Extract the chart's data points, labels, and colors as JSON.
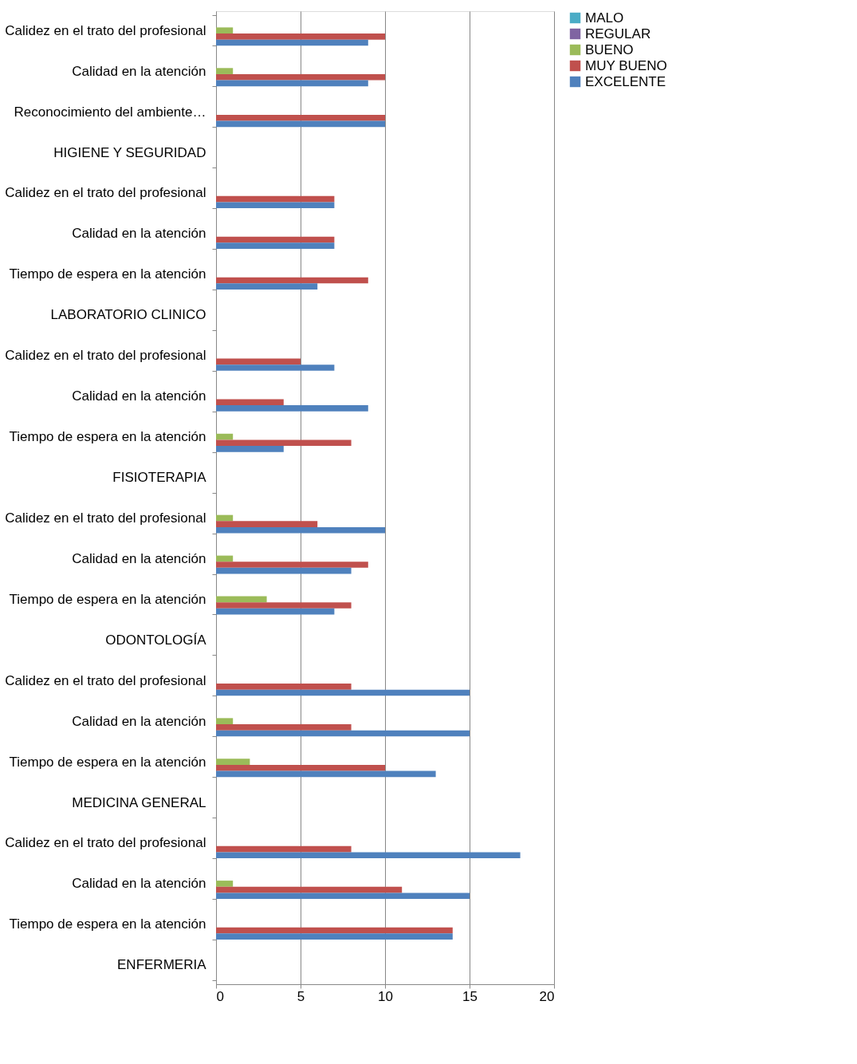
{
  "chart_data": {
    "type": "bar",
    "orientation": "horizontal",
    "categories": [
      "Calidez en el trato del profesional",
      "Calidad en la atención",
      "Reconocimiento del ambiente…",
      "HIGIENE Y SEGURIDAD",
      "Calidez en el trato del profesional",
      "Calidad en la atención",
      "Tiempo de espera en la atención",
      "LABORATORIO CLINICO",
      "Calidez en el trato del profesional",
      "Calidad en la atención",
      "Tiempo de espera en la atención",
      "FISIOTERAPIA",
      "Calidez en el trato del profesional",
      "Calidad en la atención",
      "Tiempo de espera en la atención",
      "ODONTOLOGÍA",
      "Calidez en el trato del profesional",
      "Calidad en la atención",
      "Tiempo de espera en la atención",
      "MEDICINA GENERAL",
      "Calidez en el trato del profesional",
      "Calidad en la atención",
      "Tiempo de espera en la atención",
      "ENFERMERIA"
    ],
    "series": [
      {
        "name": "MALO",
        "color": "#4bacc6",
        "values": [
          null,
          null,
          null,
          null,
          null,
          null,
          null,
          null,
          null,
          null,
          null,
          null,
          null,
          null,
          null,
          null,
          null,
          null,
          null,
          null,
          null,
          null,
          null,
          null
        ]
      },
      {
        "name": "REGULAR",
        "color": "#8064a2",
        "values": [
          null,
          null,
          null,
          null,
          null,
          null,
          null,
          null,
          null,
          null,
          null,
          null,
          null,
          null,
          null,
          null,
          null,
          null,
          null,
          null,
          null,
          null,
          null,
          null
        ]
      },
      {
        "name": "BUENO",
        "color": "#9bbb59",
        "values": [
          1,
          1,
          null,
          null,
          null,
          null,
          null,
          null,
          null,
          null,
          1,
          null,
          1,
          1,
          3,
          null,
          null,
          1,
          2,
          null,
          null,
          1,
          null,
          null
        ]
      },
      {
        "name": "MUY BUENO",
        "color": "#c0504d",
        "values": [
          10,
          10,
          10,
          null,
          7,
          7,
          9,
          null,
          5,
          4,
          8,
          null,
          6,
          9,
          8,
          null,
          8,
          8,
          10,
          null,
          8,
          11,
          14,
          null
        ]
      },
      {
        "name": "EXCELENTE",
        "color": "#4f81bd",
        "values": [
          9,
          9,
          10,
          null,
          7,
          7,
          6,
          null,
          7,
          9,
          4,
          null,
          10,
          8,
          7,
          null,
          15,
          15,
          13,
          null,
          18,
          15,
          14,
          null
        ]
      }
    ],
    "xlim": [
      0,
      20
    ],
    "xticks": [
      0,
      5,
      10,
      15,
      20
    ],
    "grid": "x",
    "legend": "right"
  }
}
